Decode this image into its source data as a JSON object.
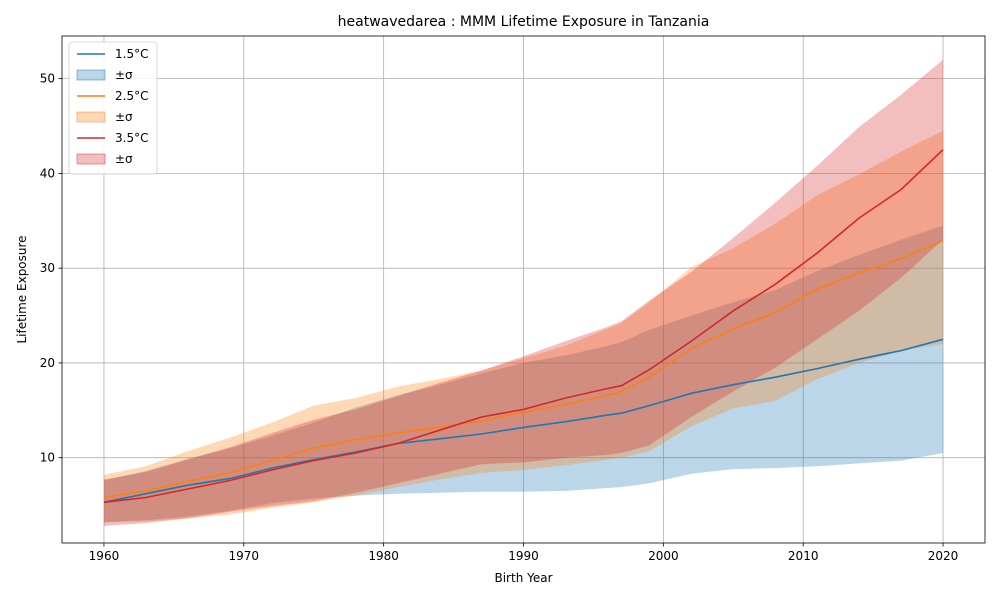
{
  "chart_data": {
    "type": "line",
    "title": "heatwavedarea : MMM Lifetime Exposure in Tanzania",
    "xlabel": "Birth Year",
    "ylabel": "Lifetime Exposure",
    "xlim": [
      1957,
      2023
    ],
    "ylim": [
      1,
      54.5
    ],
    "xticks": [
      1960,
      1970,
      1980,
      1990,
      2000,
      2010,
      2020
    ],
    "yticks": [
      10,
      20,
      30,
      40,
      50
    ],
    "grid": true,
    "legend_position": "top-left",
    "x": [
      1960,
      1963,
      1966,
      1969,
      1972,
      1975,
      1978,
      1981,
      1984,
      1987,
      1990,
      1993,
      1996,
      1997,
      1999,
      2002,
      2005,
      2008,
      2011,
      2014,
      2017,
      2020
    ],
    "series": [
      {
        "name": "1.5°C",
        "band_label": "±σ",
        "color": "#1f77b4",
        "band_color": "#1f77b4",
        "band_opacity": 0.3,
        "mean": [
          5.3,
          6.2,
          7.1,
          7.8,
          8.9,
          9.8,
          10.6,
          11.5,
          12.0,
          12.5,
          13.2,
          13.8,
          14.5,
          14.7,
          15.5,
          16.8,
          17.7,
          18.5,
          19.4,
          20.4,
          21.3,
          22.5
        ],
        "lower": [
          3.2,
          3.4,
          3.8,
          4.4,
          5.2,
          5.7,
          6.0,
          6.2,
          6.3,
          6.4,
          6.4,
          6.5,
          6.8,
          6.9,
          7.3,
          8.3,
          8.8,
          8.9,
          9.1,
          9.4,
          9.7,
          10.5
        ],
        "upper": [
          7.6,
          8.6,
          9.9,
          11.0,
          12.3,
          13.7,
          15.3,
          16.6,
          17.7,
          18.9,
          20.0,
          20.8,
          21.8,
          22.2,
          23.5,
          25.0,
          26.4,
          27.7,
          29.7,
          31.4,
          33.0,
          34.5
        ]
      },
      {
        "name": "2.5°C",
        "band_label": "±σ",
        "color": "#ff7f0e",
        "band_color": "#ff7f0e",
        "band_opacity": 0.3,
        "mean": [
          5.8,
          6.5,
          7.5,
          8.4,
          9.7,
          11.0,
          11.9,
          12.6,
          13.2,
          13.9,
          14.8,
          15.6,
          16.6,
          17.0,
          18.5,
          21.5,
          23.6,
          25.3,
          27.8,
          29.5,
          31.0,
          32.9
        ],
        "lower": [
          3.2,
          3.3,
          3.6,
          4.0,
          4.7,
          5.3,
          6.0,
          6.9,
          7.7,
          8.4,
          8.7,
          9.2,
          9.8,
          10.0,
          10.7,
          13.3,
          15.2,
          16.0,
          18.3,
          20.0,
          21.3,
          22.0
        ],
        "upper": [
          8.2,
          9.1,
          10.7,
          12.1,
          13.7,
          15.5,
          16.3,
          17.5,
          18.3,
          19.2,
          20.5,
          21.8,
          23.6,
          24.2,
          26.4,
          30.1,
          32.1,
          34.7,
          37.7,
          39.9,
          42.3,
          44.5
        ]
      },
      {
        "name": "3.5°C",
        "band_label": "±σ",
        "color": "#d62728",
        "band_color": "#d62728",
        "band_opacity": 0.3,
        "mean": [
          5.3,
          5.8,
          6.7,
          7.6,
          8.7,
          9.7,
          10.5,
          11.5,
          12.9,
          14.3,
          15.1,
          16.3,
          17.3,
          17.6,
          19.3,
          22.3,
          25.5,
          28.3,
          31.6,
          35.3,
          38.3,
          42.5
        ],
        "lower": [
          2.8,
          3.1,
          3.6,
          4.3,
          4.9,
          5.4,
          6.3,
          7.3,
          8.3,
          9.3,
          9.5,
          10.0,
          10.3,
          10.5,
          11.3,
          14.3,
          17.0,
          19.5,
          22.5,
          25.5,
          29.0,
          33.0
        ],
        "upper": [
          7.7,
          8.5,
          9.8,
          11.1,
          12.6,
          14.0,
          15.1,
          16.5,
          17.9,
          19.2,
          20.7,
          22.3,
          23.8,
          24.4,
          26.6,
          29.6,
          33.2,
          36.9,
          40.8,
          44.9,
          48.3,
          52.0
        ]
      }
    ]
  }
}
